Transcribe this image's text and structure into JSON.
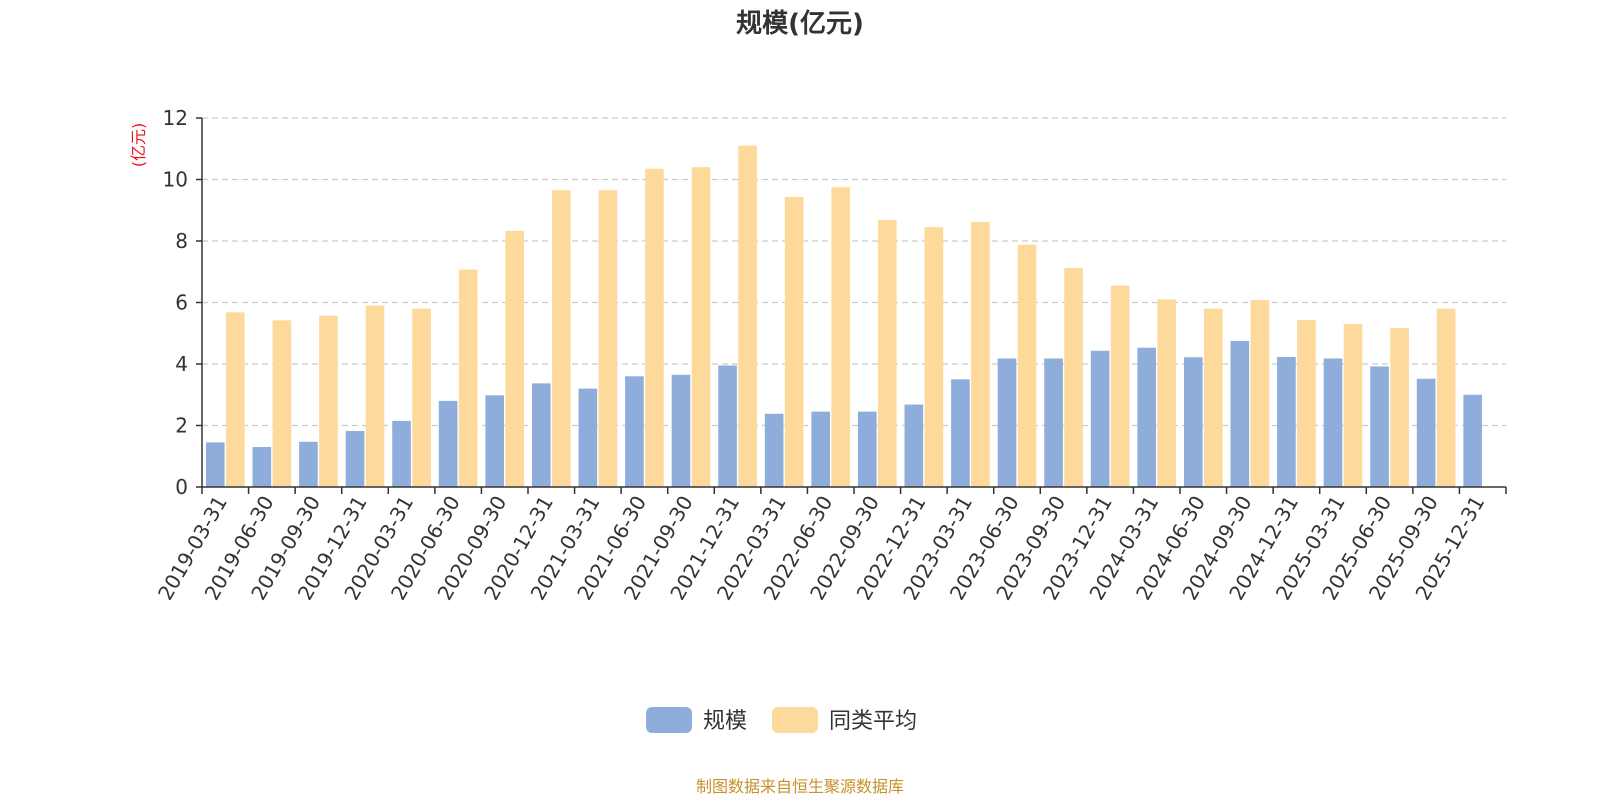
{
  "colors": {
    "series_1": "#8eadda",
    "series_2": "#fdd99b",
    "source": "#c8902a",
    "unit": "#e8141b",
    "axis": "#333333",
    "grid": "#cccccc"
  },
  "footer": {
    "source": "制图数据来自恒生聚源数据库"
  },
  "chart_data": {
    "type": "bar",
    "title": "规模(亿元)",
    "ylabel": "(亿元)",
    "xlabel": "",
    "ylim": [
      0,
      12
    ],
    "yticks": [
      0,
      2,
      4,
      6,
      8,
      10,
      12
    ],
    "grid": true,
    "legend_position": "bottom",
    "categories": [
      "2019-03-31",
      "2019-06-30",
      "2019-09-30",
      "2019-12-31",
      "2020-03-31",
      "2020-06-30",
      "2020-09-30",
      "2020-12-31",
      "2021-03-31",
      "2021-06-30",
      "2021-09-30",
      "2021-12-31",
      "2022-03-31",
      "2022-06-30",
      "2022-09-30",
      "2022-12-31",
      "2023-03-31",
      "2023-06-30",
      "2023-09-30",
      "2023-12-31",
      "2024-03-31",
      "2024-06-30",
      "2024-09-30",
      "2024-12-31",
      "2025-03-31",
      "2025-06-30",
      "2025-09-30",
      "2025-12-31"
    ],
    "series": [
      {
        "name": "规模",
        "values": [
          1.45,
          1.3,
          1.47,
          1.82,
          2.15,
          2.8,
          2.98,
          3.37,
          3.2,
          3.6,
          3.65,
          3.95,
          2.38,
          2.45,
          2.45,
          2.68,
          3.5,
          4.18,
          4.18,
          4.43,
          4.53,
          4.22,
          4.75,
          4.23,
          4.18,
          3.92,
          3.52,
          3.0
        ]
      },
      {
        "name": "同类平均",
        "values": [
          5.68,
          5.42,
          5.57,
          5.9,
          5.8,
          7.07,
          8.33,
          9.65,
          9.65,
          10.35,
          10.4,
          11.1,
          9.43,
          9.75,
          8.68,
          8.45,
          8.62,
          7.88,
          7.12,
          6.55,
          6.1,
          5.8,
          6.08,
          5.43,
          5.3,
          5.17,
          5.8,
          null
        ]
      }
    ]
  }
}
